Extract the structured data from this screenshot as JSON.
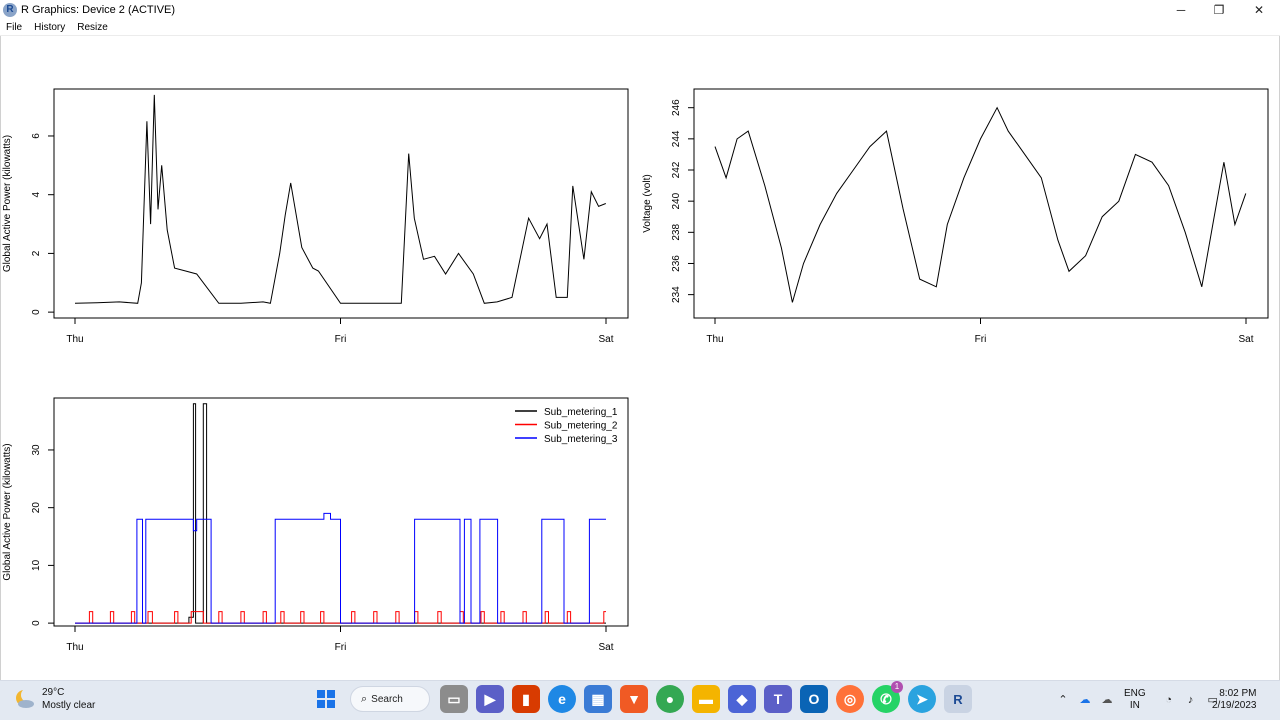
{
  "window": {
    "app_icon_letter": "R",
    "title": "R Graphics: Device 2 (ACTIVE)",
    "minimize_icon": "minimize-icon",
    "maximize_icon": "maximize-icon",
    "close_icon": "close-icon"
  },
  "menu": {
    "items": [
      "File",
      "History",
      "Resize"
    ]
  },
  "colors": {
    "black": "#000000",
    "red": "#ff0000",
    "blue": "#0000ff"
  },
  "chart_data": [
    {
      "type": "line",
      "ylabel": "Global Active Power (kilowatts)",
      "xlabel": "",
      "x_tick_labels": [
        "Thu",
        "Fri",
        "Sat"
      ],
      "y_ticks": [
        0,
        2,
        4,
        6
      ],
      "ylim": [
        -0.2,
        7.6
      ],
      "x": [
        "Thu 00:00",
        "Thu 02:00",
        "Thu 04:00",
        "Thu 05:40",
        "Thu 06:00",
        "Thu 06:30",
        "Thu 06:50",
        "Thu 07:10",
        "Thu 07:30",
        "Thu 07:50",
        "Thu 08:20",
        "Thu 09:00",
        "Thu 10:00",
        "Thu 11:00",
        "Thu 13:00",
        "Thu 15:00",
        "Thu 17:00",
        "Thu 17:40",
        "Thu 18:30",
        "Thu 19:00",
        "Thu 19:30",
        "Thu 20:30",
        "Thu 21:30",
        "Thu 22:00",
        "Fri 00:00",
        "Fri 01:30",
        "Fri 03:30",
        "Fri 05:30",
        "Fri 06:10",
        "Fri 06:40",
        "Fri 07:30",
        "Fri 08:30",
        "Fri 09:30",
        "Fri 10:40",
        "Fri 12:00",
        "Fri 13:00",
        "Fri 14:10",
        "Fri 15:30",
        "Fri 17:00",
        "Fri 18:00",
        "Fri 18:40",
        "Fri 19:30",
        "Fri 20:30",
        "Fri 21:00",
        "Fri 22:00",
        "Fri 22:40",
        "Fri 23:20",
        "Fri 23:59"
      ],
      "series": [
        {
          "values": [
            0.3,
            0.32,
            0.35,
            0.3,
            1.0,
            6.5,
            3.0,
            7.4,
            3.5,
            5.0,
            2.8,
            1.5,
            1.4,
            1.3,
            0.3,
            0.3,
            0.35,
            0.3,
            2.0,
            3.3,
            4.4,
            2.2,
            1.5,
            1.4,
            0.3,
            0.3,
            0.3,
            0.3,
            5.4,
            3.2,
            1.8,
            1.9,
            1.3,
            2.0,
            1.3,
            0.3,
            0.35,
            0.5,
            3.2,
            2.5,
            3.0,
            0.5,
            0.5,
            4.3,
            1.8,
            4.1,
            3.6,
            3.7
          ]
        }
      ]
    },
    {
      "type": "line",
      "ylabel": "Voltage (volt)",
      "xlabel": "",
      "x_tick_labels": [
        "Thu",
        "Fri",
        "Sat"
      ],
      "y_ticks": [
        234,
        236,
        238,
        240,
        242,
        244,
        246
      ],
      "ylim": [
        232.5,
        247.2
      ],
      "x": [
        "Thu 00:00",
        "Thu 01:00",
        "Thu 02:00",
        "Thu 03:00",
        "Thu 04:30",
        "Thu 06:00",
        "Thu 07:00",
        "Thu 08:00",
        "Thu 09:30",
        "Thu 11:00",
        "Thu 12:30",
        "Thu 14:00",
        "Thu 15:30",
        "Thu 17:00",
        "Thu 18:30",
        "Thu 20:00",
        "Thu 21:00",
        "Thu 22:30",
        "Fri 00:00",
        "Fri 01:30",
        "Fri 02:30",
        "Fri 04:00",
        "Fri 05:30",
        "Fri 07:00",
        "Fri 08:00",
        "Fri 09:30",
        "Fri 11:00",
        "Fri 12:30",
        "Fri 14:00",
        "Fri 15:30",
        "Fri 17:00",
        "Fri 18:30",
        "Fri 20:00",
        "Fri 21:00",
        "Fri 22:00",
        "Fri 23:00",
        "Fri 23:59"
      ],
      "series": [
        {
          "values": [
            243.5,
            241.5,
            244.0,
            244.5,
            241.0,
            237.0,
            233.5,
            236.0,
            238.5,
            240.5,
            242.0,
            243.5,
            244.5,
            239.5,
            235.0,
            234.5,
            238.5,
            241.5,
            244.0,
            246.0,
            244.5,
            243.0,
            241.5,
            237.5,
            235.5,
            236.5,
            239.0,
            240.0,
            243.0,
            242.5,
            241.0,
            238.0,
            234.5,
            238.5,
            242.5,
            238.5,
            240.5
          ]
        }
      ]
    },
    {
      "type": "line",
      "ylabel": "Global Active Power (kilowatts)",
      "xlabel": "",
      "x_tick_labels": [
        "Thu",
        "Fri",
        "Sat"
      ],
      "y_ticks": [
        0,
        10,
        20,
        30
      ],
      "ylim": [
        -0.5,
        39
      ],
      "legend": "top-right",
      "x_units": "hours since Thu 00:00",
      "series": [
        {
          "name": "Sub_metering_1",
          "color": "#000000",
          "points": [
            [
              0,
              0
            ],
            [
              10.3,
              0
            ],
            [
              10.3,
              1
            ],
            [
              10.7,
              1
            ],
            [
              10.7,
              38
            ],
            [
              10.9,
              38
            ],
            [
              10.9,
              0
            ],
            [
              11.6,
              0
            ],
            [
              11.6,
              38
            ],
            [
              11.9,
              38
            ],
            [
              11.9,
              0
            ],
            [
              48,
              0
            ]
          ]
        },
        {
          "name": "Sub_metering_2",
          "color": "#ff0000",
          "points": [
            [
              0,
              0
            ],
            [
              1.3,
              0
            ],
            [
              1.3,
              2
            ],
            [
              1.6,
              2
            ],
            [
              1.6,
              0
            ],
            [
              3.2,
              0
            ],
            [
              3.2,
              2
            ],
            [
              3.5,
              2
            ],
            [
              3.5,
              0
            ],
            [
              5.1,
              0
            ],
            [
              5.1,
              2
            ],
            [
              5.4,
              2
            ],
            [
              5.4,
              0
            ],
            [
              6.6,
              0
            ],
            [
              6.6,
              2
            ],
            [
              7.0,
              2
            ],
            [
              7.0,
              0
            ],
            [
              9.0,
              0
            ],
            [
              9.0,
              2
            ],
            [
              9.3,
              2
            ],
            [
              9.3,
              0
            ],
            [
              10.5,
              0
            ],
            [
              10.5,
              2
            ],
            [
              11.6,
              2
            ],
            [
              11.6,
              0
            ],
            [
              13.0,
              0
            ],
            [
              13.0,
              2
            ],
            [
              13.3,
              2
            ],
            [
              13.3,
              0
            ],
            [
              15.0,
              0
            ],
            [
              15.0,
              2
            ],
            [
              15.3,
              2
            ],
            [
              15.3,
              0
            ],
            [
              17.0,
              0
            ],
            [
              17.0,
              2
            ],
            [
              17.3,
              2
            ],
            [
              17.3,
              0
            ],
            [
              18.6,
              0
            ],
            [
              18.6,
              2
            ],
            [
              18.9,
              2
            ],
            [
              18.9,
              0
            ],
            [
              20.4,
              0
            ],
            [
              20.4,
              2
            ],
            [
              20.7,
              2
            ],
            [
              20.7,
              0
            ],
            [
              22.2,
              0
            ],
            [
              22.2,
              2
            ],
            [
              22.5,
              2
            ],
            [
              22.5,
              0
            ],
            [
              25.0,
              0
            ],
            [
              25.0,
              2
            ],
            [
              25.3,
              2
            ],
            [
              25.3,
              0
            ],
            [
              27.0,
              0
            ],
            [
              27.0,
              2
            ],
            [
              27.3,
              2
            ],
            [
              27.3,
              0
            ],
            [
              29.0,
              0
            ],
            [
              29.0,
              2
            ],
            [
              29.3,
              2
            ],
            [
              29.3,
              0
            ],
            [
              30.7,
              0
            ],
            [
              30.7,
              2
            ],
            [
              31.0,
              2
            ],
            [
              31.0,
              0
            ],
            [
              32.8,
              0
            ],
            [
              32.8,
              2
            ],
            [
              33.1,
              2
            ],
            [
              33.1,
              0
            ],
            [
              34.8,
              0
            ],
            [
              34.8,
              2
            ],
            [
              35.1,
              2
            ],
            [
              35.1,
              0
            ],
            [
              36.7,
              0
            ],
            [
              36.7,
              2
            ],
            [
              37.0,
              2
            ],
            [
              37.0,
              0
            ],
            [
              38.5,
              0
            ],
            [
              38.5,
              2
            ],
            [
              38.8,
              2
            ],
            [
              38.8,
              0
            ],
            [
              40.5,
              0
            ],
            [
              40.5,
              2
            ],
            [
              40.8,
              2
            ],
            [
              40.8,
              0
            ],
            [
              42.5,
              0
            ],
            [
              42.5,
              2
            ],
            [
              42.8,
              2
            ],
            [
              42.8,
              0
            ],
            [
              44.5,
              0
            ],
            [
              44.5,
              2
            ],
            [
              44.8,
              2
            ],
            [
              44.8,
              0
            ],
            [
              47.8,
              0
            ],
            [
              47.8,
              2
            ],
            [
              48,
              2
            ]
          ]
        },
        {
          "name": "Sub_metering_3",
          "color": "#0000ff",
          "points": [
            [
              0,
              0
            ],
            [
              5.6,
              0
            ],
            [
              5.6,
              18
            ],
            [
              6.1,
              18
            ],
            [
              6.1,
              0
            ],
            [
              6.4,
              0
            ],
            [
              6.4,
              18
            ],
            [
              10.7,
              18
            ],
            [
              10.7,
              16
            ],
            [
              11.0,
              16
            ],
            [
              11.0,
              18
            ],
            [
              12.3,
              18
            ],
            [
              12.3,
              0
            ],
            [
              18.1,
              0
            ],
            [
              18.1,
              18
            ],
            [
              22.5,
              18
            ],
            [
              22.5,
              19
            ],
            [
              23.1,
              19
            ],
            [
              23.1,
              18
            ],
            [
              24.0,
              18
            ],
            [
              24.0,
              0
            ],
            [
              30.7,
              0
            ],
            [
              30.7,
              18
            ],
            [
              34.8,
              18
            ],
            [
              34.8,
              0
            ],
            [
              35.2,
              0
            ],
            [
              35.2,
              18
            ],
            [
              35.8,
              18
            ],
            [
              35.8,
              0
            ],
            [
              36.6,
              0
            ],
            [
              36.6,
              18
            ],
            [
              38.2,
              18
            ],
            [
              38.2,
              0
            ],
            [
              42.2,
              0
            ],
            [
              42.2,
              18
            ],
            [
              44.2,
              18
            ],
            [
              44.2,
              0
            ],
            [
              46.5,
              0
            ],
            [
              46.5,
              18
            ],
            [
              48,
              18
            ]
          ]
        }
      ]
    }
  ],
  "taskbar": {
    "weather_temp": "29°C",
    "weather_desc": "Mostly clear",
    "search_label": "Search",
    "chat_badge": "1",
    "lang_line1": "ENG",
    "lang_line2": "IN",
    "time": "8:02 PM",
    "date": "2/19/2023"
  }
}
